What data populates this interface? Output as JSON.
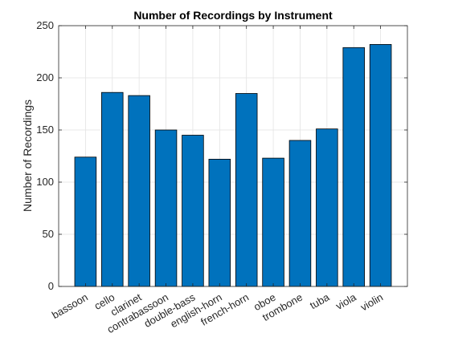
{
  "chart_data": {
    "type": "bar",
    "title": "Number of Recordings by Instrument",
    "xlabel": "",
    "ylabel": "Number of Recordings",
    "categories": [
      "bassoon",
      "cello",
      "clarinet",
      "contrabassoon",
      "double-bass",
      "english-horn",
      "french-horn",
      "oboe",
      "trombone",
      "tuba",
      "viola",
      "violin"
    ],
    "values": [
      124,
      186,
      183,
      150,
      145,
      122,
      185,
      123,
      140,
      151,
      229,
      232
    ],
    "ylim": [
      0,
      250
    ],
    "yticks": [
      0,
      50,
      100,
      150,
      200,
      250
    ],
    "grid": true,
    "bar_color": "#0072BD",
    "bar_edge_color": "#000000"
  }
}
